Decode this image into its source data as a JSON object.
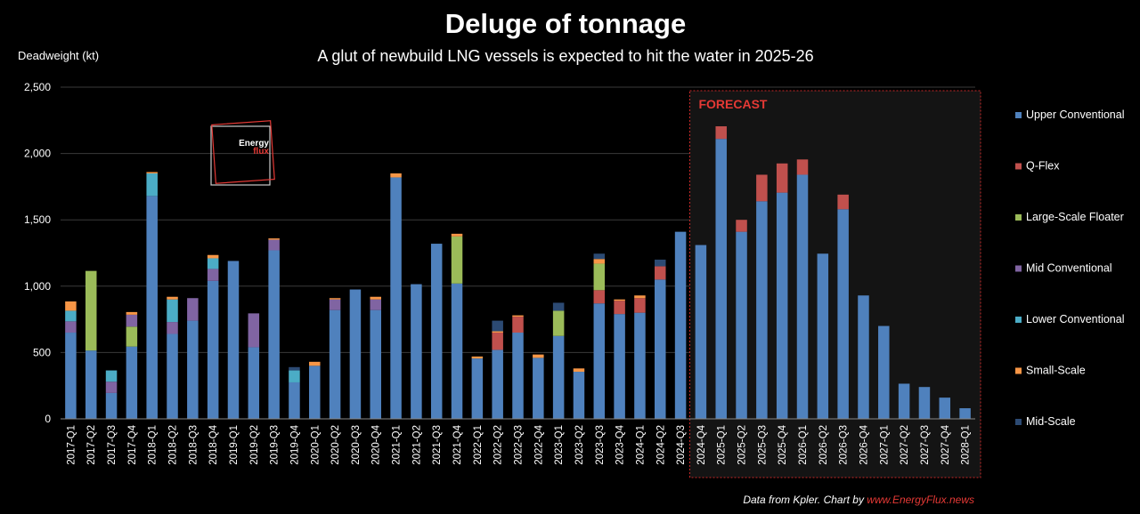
{
  "chart_data": {
    "type": "bar",
    "stacked": true,
    "title": "Deluge of tonnage",
    "subtitle": "A glut of newbuild LNG vessels is expected to hit the water in 2025-26",
    "ylabel": "Deadweight (kt)",
    "xlabel": "",
    "ylim": [
      0,
      2500
    ],
    "yticks": [
      0,
      500,
      1000,
      1500,
      2000,
      2500
    ],
    "ytick_labels": [
      "0",
      "500",
      "1,000",
      "1,500",
      "2,000",
      "2,500"
    ],
    "grid": true,
    "legend_position": "right",
    "forecast_label": "FORECAST",
    "forecast_start": "2024-Q4",
    "forecast_end": "2028-Q1",
    "source_prefix": "Data from Kpler. Chart by ",
    "source_link": "www.EnergyFlux.news",
    "categories": [
      "2017-Q1",
      "2017-Q2",
      "2017-Q3",
      "2017-Q4",
      "2018-Q1",
      "2018-Q2",
      "2018-Q3",
      "2018-Q4",
      "2019-Q1",
      "2019-Q2",
      "2019-Q3",
      "2019-Q4",
      "2020-Q1",
      "2020-Q2",
      "2020-Q3",
      "2020-Q4",
      "2021-Q1",
      "2021-Q2",
      "2021-Q3",
      "2021-Q4",
      "2022-Q1",
      "2022-Q2",
      "2022-Q3",
      "2022-Q4",
      "2023-Q1",
      "2023-Q2",
      "2023-Q3",
      "2023-Q4",
      "2024-Q1",
      "2024-Q2",
      "2024-Q3",
      "2024-Q4",
      "2025-Q1",
      "2025-Q2",
      "2025-Q3",
      "2025-Q4",
      "2026-Q1",
      "2026-Q2",
      "2026-Q3",
      "2026-Q4",
      "2027-Q1",
      "2027-Q2",
      "2027-Q3",
      "2027-Q4",
      "2028-Q1"
    ],
    "series": [
      {
        "name": "Upper Conventional",
        "color": "#4f81bd",
        "values": [
          650,
          515,
          195,
          545,
          1680,
          640,
          740,
          1040,
          1190,
          540,
          1270,
          275,
          400,
          820,
          975,
          820,
          1820,
          1015,
          1320,
          1020,
          455,
          520,
          650,
          460,
          625,
          355,
          870,
          790,
          800,
          1050,
          1410,
          1310,
          2110,
          1410,
          1640,
          1705,
          1840,
          1245,
          1580,
          930,
          700,
          265,
          240,
          160,
          80
        ]
      },
      {
        "name": "Q-Flex",
        "color": "#c0504d",
        "values": [
          0,
          0,
          0,
          0,
          0,
          0,
          0,
          0,
          0,
          0,
          0,
          0,
          0,
          0,
          0,
          0,
          0,
          0,
          0,
          0,
          0,
          130,
          120,
          0,
          0,
          0,
          100,
          100,
          110,
          100,
          0,
          0,
          95,
          90,
          200,
          220,
          115,
          0,
          110,
          0,
          0,
          0,
          0,
          0,
          0
        ]
      },
      {
        "name": "Large-Scale Floater",
        "color": "#9bbb59",
        "values": [
          0,
          600,
          0,
          150,
          0,
          0,
          0,
          0,
          0,
          0,
          0,
          0,
          0,
          0,
          0,
          0,
          0,
          0,
          0,
          355,
          0,
          0,
          0,
          0,
          190,
          0,
          200,
          0,
          0,
          0,
          0,
          0,
          0,
          0,
          0,
          0,
          0,
          0,
          0,
          0,
          0,
          0,
          0,
          0,
          0
        ]
      },
      {
        "name": "Mid Conventional",
        "color": "#8064a2",
        "values": [
          85,
          0,
          85,
          90,
          0,
          90,
          170,
          90,
          0,
          255,
          80,
          0,
          0,
          80,
          0,
          80,
          0,
          0,
          0,
          0,
          0,
          0,
          0,
          0,
          0,
          0,
          0,
          0,
          0,
          0,
          0,
          0,
          0,
          0,
          0,
          0,
          0,
          0,
          0,
          0,
          0,
          0,
          0,
          0,
          0
        ]
      },
      {
        "name": "Lower Conventional",
        "color": "#4bacc6",
        "values": [
          80,
          0,
          85,
          0,
          170,
          170,
          0,
          80,
          0,
          0,
          0,
          90,
          0,
          0,
          0,
          0,
          0,
          0,
          0,
          0,
          0,
          0,
          0,
          0,
          0,
          0,
          0,
          0,
          0,
          0,
          0,
          0,
          0,
          0,
          0,
          0,
          0,
          0,
          0,
          0,
          0,
          0,
          0,
          0,
          0
        ]
      },
      {
        "name": "Small-Scale",
        "color": "#f79646",
        "values": [
          70,
          0,
          0,
          20,
          10,
          20,
          0,
          25,
          0,
          0,
          10,
          0,
          30,
          10,
          0,
          20,
          30,
          0,
          0,
          20,
          15,
          10,
          10,
          25,
          0,
          25,
          35,
          10,
          20,
          0,
          0,
          0,
          0,
          0,
          0,
          0,
          0,
          0,
          0,
          0,
          0,
          0,
          0,
          0,
          0
        ]
      },
      {
        "name": "Mid-Scale",
        "color": "#2c4a73",
        "values": [
          0,
          0,
          0,
          0,
          0,
          0,
          0,
          0,
          0,
          0,
          0,
          25,
          0,
          0,
          0,
          0,
          0,
          0,
          0,
          0,
          0,
          80,
          0,
          0,
          60,
          0,
          40,
          0,
          0,
          50,
          0,
          0,
          0,
          0,
          0,
          0,
          0,
          0,
          0,
          0,
          0,
          0,
          0,
          0,
          0
        ]
      }
    ]
  },
  "logo": {
    "line1": "Energy",
    "line2": "flux"
  }
}
